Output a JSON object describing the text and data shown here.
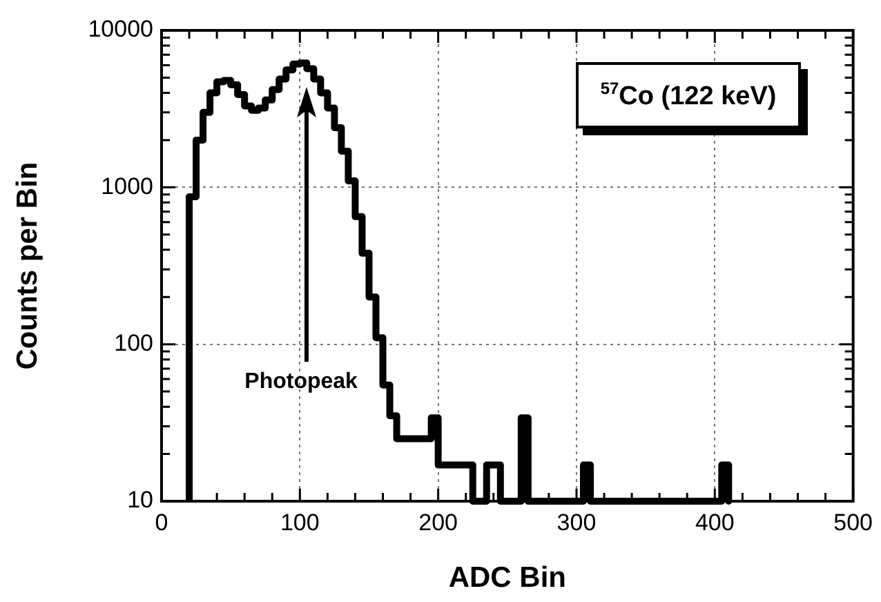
{
  "chart_data": {
    "type": "histogram",
    "xlabel": "ADC Bin",
    "ylabel": "Counts per Bin",
    "color": "#000000",
    "bins": [
      20,
      25,
      30,
      35,
      40,
      45,
      50,
      55,
      60,
      65,
      70,
      75,
      80,
      85,
      90,
      95,
      100,
      105,
      110,
      115,
      120,
      125,
      130,
      135,
      140,
      145,
      150,
      155,
      160,
      165,
      170,
      175,
      180,
      185,
      190,
      195,
      200,
      205,
      210,
      215,
      220,
      225,
      230,
      235,
      240,
      245,
      250,
      255,
      260,
      265,
      270,
      275,
      280,
      285,
      290,
      295,
      300,
      305,
      310,
      315,
      320,
      325,
      330,
      335,
      340,
      345,
      350,
      355,
      360,
      365,
      370,
      375,
      380,
      385,
      390,
      395,
      400,
      405,
      410
    ],
    "values": [
      870,
      2000,
      3000,
      4000,
      4700,
      4800,
      4500,
      3900,
      3300,
      3100,
      3200,
      3600,
      4200,
      4900,
      5600,
      6100,
      6200,
      5700,
      4900,
      4000,
      3200,
      2400,
      1700,
      1100,
      650,
      380,
      200,
      110,
      55,
      35,
      25,
      25,
      25,
      25,
      25,
      34,
      17,
      17,
      17,
      17,
      17,
      null,
      null,
      17,
      17,
      null,
      null,
      null,
      34,
      null,
      null,
      null,
      null,
      null,
      null,
      null,
      null,
      17,
      null,
      null,
      null,
      null,
      null,
      null,
      null,
      null,
      null,
      null,
      null,
      null,
      null,
      null,
      null,
      null,
      null,
      null,
      null,
      17
    ],
    "log": "y",
    "grid": true,
    "xlim": [
      0,
      500
    ],
    "xticks": [
      0,
      {
        "value": 20,
        "label": null
      },
      {
        "value": 40,
        "label": null
      },
      {
        "value": 60,
        "label": null
      },
      {
        "value": 80,
        "label": null
      },
      100,
      {
        "value": 120,
        "label": null
      },
      {
        "value": 140,
        "label": null
      },
      {
        "value": 160,
        "label": null
      },
      {
        "value": 180,
        "label": null
      },
      200,
      {
        "value": 220,
        "label": null
      },
      {
        "value": 240,
        "label": null
      },
      {
        "value": 260,
        "label": null
      },
      {
        "value": 280,
        "label": null
      },
      300,
      {
        "value": 320,
        "label": null
      },
      {
        "value": 340,
        "label": null
      },
      {
        "value": 360,
        "label": null
      },
      {
        "value": 380,
        "label": null
      },
      400,
      {
        "value": 420,
        "label": null
      },
      {
        "value": 440,
        "label": null
      },
      {
        "value": 460,
        "label": null
      },
      {
        "value": 480,
        "label": null
      },
      500
    ],
    "ylim": [
      10,
      10000
    ],
    "yticks": [
      10,
      {
        "value": 20,
        "label": null
      },
      {
        "value": 30,
        "label": null
      },
      {
        "value": 40,
        "label": null
      },
      {
        "value": 50,
        "label": null
      },
      {
        "value": 60,
        "label": null
      },
      {
        "value": 70,
        "label": null
      },
      {
        "value": 80,
        "label": null
      },
      {
        "value": 90,
        "label": null
      },
      100,
      {
        "value": 200,
        "label": null
      },
      {
        "value": 300,
        "label": null
      },
      {
        "value": 400,
        "label": null
      },
      {
        "value": 500,
        "label": null
      },
      {
        "value": 600,
        "label": null
      },
      {
        "value": 700,
        "label": null
      },
      {
        "value": 800,
        "label": null
      },
      {
        "value": 900,
        "label": null
      },
      1000,
      {
        "value": 2000,
        "label": null
      },
      {
        "value": 3000,
        "label": null
      },
      {
        "value": 4000,
        "label": null
      },
      {
        "value": 5000,
        "label": null
      },
      {
        "value": 6000,
        "label": null
      },
      {
        "value": 7000,
        "label": null
      },
      {
        "value": 8000,
        "label": null
      },
      {
        "value": 9000,
        "label": null
      },
      10000
    ],
    "annotations": [
      "Photopeak",
      "$^{57}$Co (122 keV)"
    ]
  }
}
